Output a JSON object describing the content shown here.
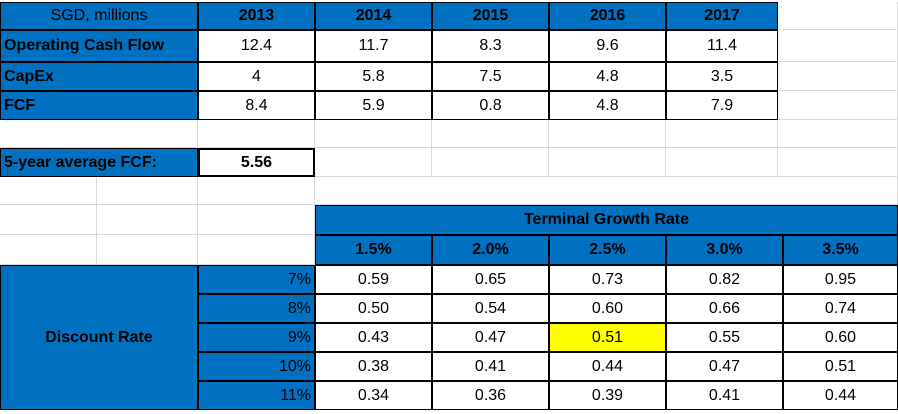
{
  "colors": {
    "header_blue": "#0070c0",
    "highlight": "#ffff00",
    "gridline": "#d9d9d9"
  },
  "fcf_table": {
    "corner_label": "SGD, millions",
    "years": [
      "2013",
      "2014",
      "2015",
      "2016",
      "2017"
    ],
    "rows": [
      {
        "label": "Operating Cash Flow",
        "values": [
          "12.4",
          "11.7",
          "8.3",
          "9.6",
          "11.4"
        ]
      },
      {
        "label": "CapEx",
        "values": [
          "4",
          "5.8",
          "7.5",
          "4.8",
          "3.5"
        ]
      },
      {
        "label": "FCF",
        "values": [
          "8.4",
          "5.9",
          "0.8",
          "4.8",
          "7.9"
        ]
      }
    ]
  },
  "average": {
    "label": "5-year average FCF:",
    "value": "5.56"
  },
  "sensitivity": {
    "col_header": "Terminal Growth Rate",
    "row_header": "Discount Rate",
    "growth_rates": [
      "1.5%",
      "2.0%",
      "2.5%",
      "3.0%",
      "3.5%"
    ],
    "discount_rates": [
      "7%",
      "8%",
      "9%",
      "10%",
      "11%"
    ],
    "values": [
      [
        "0.59",
        "0.65",
        "0.73",
        "0.82",
        "0.95"
      ],
      [
        "0.50",
        "0.54",
        "0.60",
        "0.66",
        "0.74"
      ],
      [
        "0.43",
        "0.47",
        "0.51",
        "0.55",
        "0.60"
      ],
      [
        "0.38",
        "0.41",
        "0.44",
        "0.47",
        "0.51"
      ],
      [
        "0.34",
        "0.36",
        "0.39",
        "0.41",
        "0.44"
      ]
    ],
    "highlight_cell": {
      "row": 2,
      "col": 2
    }
  }
}
